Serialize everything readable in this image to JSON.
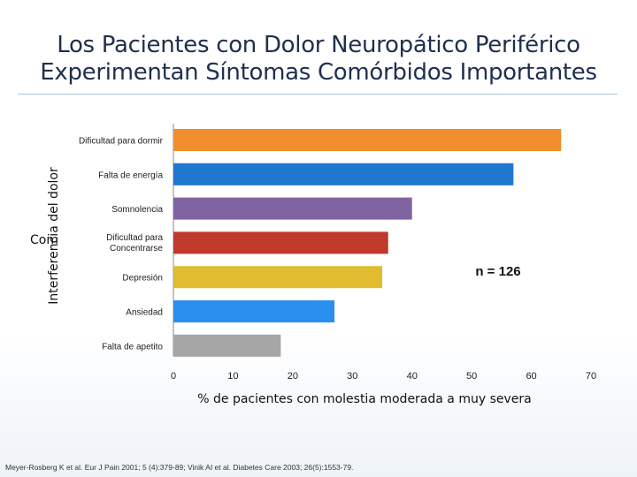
{
  "title": {
    "line1": "Los Pacientes con Dolor Neuropático Periférico",
    "line2": "Experimentan Síntomas Comórbidos Importantes"
  },
  "footnote": "Meyer-Rosberg K et al. Eur J Pain 2001; 5 (4):379-89; Vinik AI et al. Diabetes Care 2003; 26(5):1553-79.",
  "chart_data": {
    "type": "bar",
    "orientation": "horizontal",
    "categories": [
      "Dificultad para dormir",
      "Falta de energía",
      "Somnolencia",
      "Dificultad para Concentrarse",
      "Depresión",
      "Ansiedad",
      "Falta de apetito"
    ],
    "values": [
      65,
      57,
      40,
      36,
      35,
      27,
      18
    ],
    "colors": [
      "#f28e2b",
      "#1f77d0",
      "#8064a2",
      "#c0392b",
      "#e0bc2e",
      "#2b8ff0",
      "#a6a6a6"
    ],
    "xlabel": "% de pacientes con molestia moderada a muy severa",
    "ylabel": "Interferencia del dolor",
    "ylabel_overlap": "Com",
    "xlim": [
      0,
      70
    ],
    "xticks": [
      0,
      10,
      20,
      30,
      40,
      50,
      60,
      70
    ],
    "grid": false,
    "annotation": "n = 126"
  }
}
